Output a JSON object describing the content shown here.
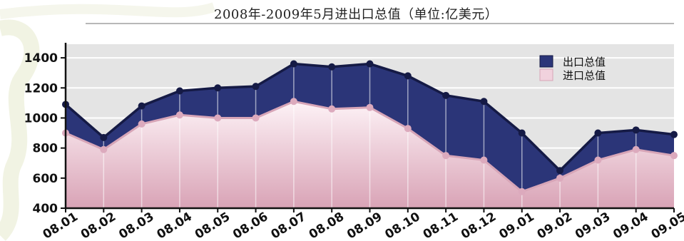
{
  "chart_data": {
    "type": "area",
    "title": "2008年-2009年5月进出口总值（单位:亿美元）",
    "xlabel": "",
    "ylabel": "",
    "categories": [
      "08.01",
      "08.02",
      "08.03",
      "08.04",
      "08.05",
      "08.06",
      "08.07",
      "08.08",
      "08.09",
      "08.10",
      "08.11",
      "08.12",
      "09.01",
      "09.02",
      "09.03",
      "09.04",
      "09.05"
    ],
    "ylim": [
      400,
      1500
    ],
    "yticks": [
      400,
      600,
      800,
      1000,
      1200,
      1400
    ],
    "grid": true,
    "legend_position": "top-right",
    "series": [
      {
        "name": "出口总值",
        "color": "#2b3578",
        "values": [
          1090,
          870,
          1080,
          1180,
          1200,
          1210,
          1360,
          1340,
          1360,
          1280,
          1150,
          1110,
          900,
          650,
          900,
          920,
          890
        ]
      },
      {
        "name": "进口总值",
        "color": "#ecc3d1",
        "values": [
          900,
          790,
          960,
          1020,
          1000,
          1000,
          1110,
          1060,
          1070,
          930,
          750,
          720,
          510,
          600,
          720,
          790,
          750
        ]
      }
    ]
  }
}
